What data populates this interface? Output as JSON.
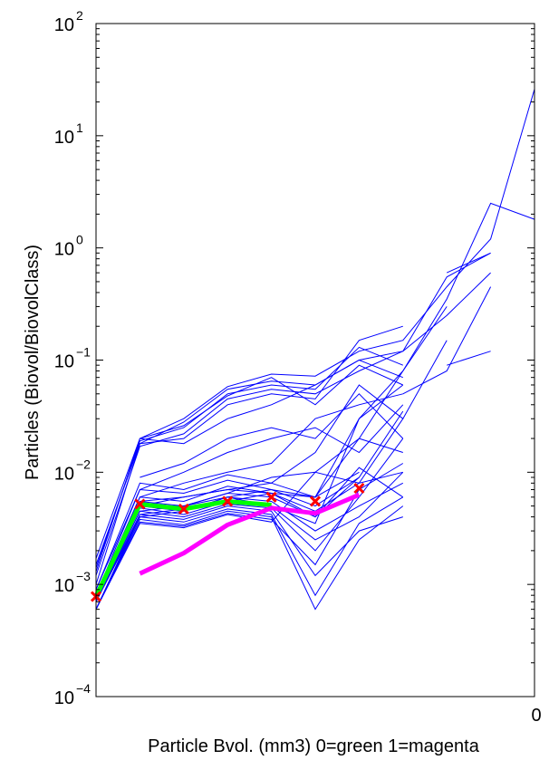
{
  "chart_data": {
    "type": "line",
    "xlabel": "Particle Bvol. (mm3) 0=green 1=magenta",
    "ylabel": "Particles (Biovol/BiovolClass)",
    "x_tick_labels": [
      "0"
    ],
    "yscale": "log",
    "ylim": [
      0.0001,
      100
    ],
    "y_ticks": [
      {
        "value": 0.0001,
        "base": "10",
        "exp": "−4"
      },
      {
        "value": 0.001,
        "base": "10",
        "exp": "−3"
      },
      {
        "value": 0.01,
        "base": "10",
        "exp": "−2"
      },
      {
        "value": 0.1,
        "base": "10",
        "exp": "−1"
      },
      {
        "value": 1,
        "base": "10",
        "exp": "0"
      },
      {
        "value": 10,
        "base": "10",
        "exp": "1"
      },
      {
        "value": 100,
        "base": "10",
        "exp": "2"
      }
    ],
    "grid": false,
    "legend": "none",
    "colors": {
      "samples": "#0000ff",
      "mean_0": "#00ff00",
      "mean_1": "#ff00ff",
      "markers": "#ff0000",
      "axes": "#000000"
    },
    "series": [
      {
        "x": [
          0,
          1,
          2,
          3,
          4,
          5,
          6,
          7,
          8,
          9,
          10
        ],
        "values": [
          0.0017,
          0.02,
          0.03,
          0.058,
          0.075,
          0.072,
          0.12,
          0.15,
          0.45,
          1.2,
          26
        ]
      },
      {
        "x": [
          0,
          1,
          2,
          3,
          4,
          5,
          6,
          7,
          8,
          9
        ],
        "values": [
          0.0015,
          0.018,
          0.028,
          0.055,
          0.065,
          0.06,
          0.1,
          0.12,
          0.55,
          0.9
        ]
      },
      {
        "x": [
          0,
          1,
          2,
          3,
          4,
          5,
          6,
          7
        ],
        "values": [
          0.0014,
          0.019,
          0.025,
          0.05,
          0.06,
          0.055,
          0.13,
          0.09
        ]
      },
      {
        "x": [
          0,
          1,
          2,
          3,
          4,
          5,
          6,
          7
        ],
        "values": [
          0.0012,
          0.017,
          0.022,
          0.045,
          0.055,
          0.05,
          0.08,
          0.12
        ]
      },
      {
        "x": [
          0,
          1,
          2,
          3,
          4,
          5,
          6,
          7
        ],
        "values": [
          0.001,
          0.018,
          0.02,
          0.04,
          0.05,
          0.045,
          0.15,
          0.2
        ]
      },
      {
        "x": [
          0,
          1,
          2,
          3,
          4,
          5,
          6,
          7
        ],
        "values": [
          0.0013,
          0.02,
          0.026,
          0.048,
          0.07,
          0.04,
          0.09,
          0.06
        ]
      },
      {
        "x": [
          1,
          2,
          3,
          4,
          5,
          6,
          7
        ],
        "values": [
          0.02,
          0.018,
          0.03,
          0.04,
          0.06,
          0.1,
          0.07
        ]
      },
      {
        "x": [
          0,
          1,
          2,
          3,
          4,
          5,
          6,
          7,
          8
        ],
        "values": [
          0.0009,
          0.008,
          0.007,
          0.0095,
          0.008,
          0.006,
          0.03,
          0.08,
          0.3
        ]
      },
      {
        "x": [
          0,
          1,
          2,
          3,
          4,
          5,
          6,
          7
        ],
        "values": [
          0.0009,
          0.007,
          0.0065,
          0.0085,
          0.007,
          0.005,
          0.009,
          0.035
        ]
      },
      {
        "x": [
          0,
          1,
          2,
          3,
          4,
          5,
          6,
          7
        ],
        "values": [
          0.0008,
          0.006,
          0.0055,
          0.0075,
          0.0065,
          0.006,
          0.02,
          0.015
        ]
      },
      {
        "x": [
          0,
          1,
          2,
          3,
          4,
          5,
          6,
          7
        ],
        "values": [
          0.0008,
          0.0055,
          0.005,
          0.0065,
          0.006,
          0.004,
          0.011,
          0.006
        ]
      },
      {
        "x": [
          0,
          1,
          2,
          3,
          4,
          5,
          6,
          7
        ],
        "values": [
          0.0007,
          0.005,
          0.0045,
          0.006,
          0.0055,
          0.003,
          0.005,
          0.008
        ]
      },
      {
        "x": [
          0,
          1,
          2,
          3,
          4,
          5,
          6,
          7
        ],
        "values": [
          0.0007,
          0.0048,
          0.0042,
          0.0055,
          0.005,
          0.0025,
          0.004,
          0.01
        ]
      },
      {
        "x": [
          0,
          1,
          2,
          3,
          4,
          5,
          6,
          7
        ],
        "values": [
          0.0007,
          0.0045,
          0.004,
          0.0052,
          0.0048,
          0.002,
          0.006,
          0.02
        ]
      },
      {
        "x": [
          0,
          1,
          2,
          3,
          4,
          5,
          6,
          7
        ],
        "values": [
          0.0007,
          0.0042,
          0.0038,
          0.005,
          0.0045,
          0.0012,
          0.003,
          0.004
        ]
      },
      {
        "x": [
          0,
          1,
          2,
          3,
          4,
          5,
          6,
          7
        ],
        "values": [
          0.0006,
          0.004,
          0.0036,
          0.0047,
          0.0042,
          0.0008,
          0.0035,
          0.006
        ]
      },
      {
        "x": [
          0,
          1,
          2,
          3,
          4,
          5,
          6,
          7
        ],
        "values": [
          0.0006,
          0.0038,
          0.0034,
          0.0045,
          0.004,
          0.0006,
          0.0025,
          0.005
        ]
      },
      {
        "x": [
          0,
          1,
          2,
          3,
          4,
          5,
          6,
          7
        ],
        "values": [
          0.0006,
          0.0036,
          0.0033,
          0.0043,
          0.0038,
          0.0015,
          0.007,
          0.012
        ]
      },
      {
        "x": [
          0,
          1,
          2,
          3,
          4,
          5,
          6,
          7
        ],
        "values": [
          0.0006,
          0.0035,
          0.0032,
          0.0042,
          0.0036,
          0.01,
          0.008,
          0.01
        ]
      },
      {
        "x": [
          0,
          1,
          2,
          3,
          4,
          5,
          6,
          7,
          8
        ],
        "values": [
          0.0007,
          0.005,
          0.006,
          0.007,
          0.008,
          0.015,
          0.06,
          0.03,
          0.15
        ]
      },
      {
        "x": [
          0,
          1,
          2,
          3,
          4,
          5,
          6,
          7
        ],
        "values": [
          0.0008,
          0.006,
          0.008,
          0.01,
          0.012,
          0.03,
          0.04,
          0.05
        ]
      },
      {
        "x": [
          0,
          1,
          2,
          3,
          4,
          5,
          6,
          7
        ],
        "values": [
          0.0008,
          0.007,
          0.01,
          0.015,
          0.02,
          0.025,
          0.015,
          0.04
        ]
      },
      {
        "x": [
          1,
          2,
          3,
          4,
          5,
          6,
          7
        ],
        "values": [
          0.009,
          0.012,
          0.02,
          0.025,
          0.02,
          0.05,
          0.02
        ]
      },
      {
        "x": [
          0,
          1,
          2,
          3,
          4,
          5,
          6,
          7
        ],
        "values": [
          0.0007,
          0.0045,
          0.005,
          0.0065,
          0.009,
          0.01,
          0.02,
          0.08
        ]
      },
      {
        "x": [
          0,
          1,
          2,
          3,
          4,
          5,
          6
        ],
        "values": [
          0.0007,
          0.004,
          0.0045,
          0.006,
          0.007,
          0.006,
          0.01
        ]
      },
      {
        "x": [
          0,
          1,
          2,
          3,
          4,
          5,
          6
        ],
        "values": [
          0.0006,
          0.0042,
          0.0047,
          0.0055,
          0.0065,
          0.004,
          0.009
        ]
      },
      {
        "x": [
          1,
          2,
          3,
          4,
          5,
          6,
          7
        ],
        "values": [
          0.005,
          0.005,
          0.006,
          0.005,
          0.0035,
          0.03,
          0.06
        ]
      },
      {
        "x": [
          1,
          2,
          3,
          4,
          5,
          6,
          7
        ],
        "values": [
          0.0055,
          0.006,
          0.007,
          0.0065,
          0.0045,
          0.008,
          0.03
        ]
      },
      {
        "x": [
          7,
          8,
          9,
          10
        ],
        "values": [
          0.08,
          0.35,
          2.5,
          1.8
        ]
      },
      {
        "x": [
          7,
          8,
          9
        ],
        "values": [
          0.12,
          0.25,
          0.6
        ]
      },
      {
        "x": [
          7,
          8,
          9
        ],
        "values": [
          0.05,
          0.08,
          0.45
        ]
      },
      {
        "x": [
          8,
          9
        ],
        "values": [
          0.09,
          0.12
        ]
      },
      {
        "x": [
          8,
          9
        ],
        "values": [
          0.6,
          0.9
        ]
      }
    ],
    "mean_series_0": {
      "x": [
        0,
        1,
        2,
        3,
        4
      ],
      "values": [
        0.00078,
        0.0052,
        0.0047,
        0.0055,
        0.0051
      ]
    },
    "mean_series_1": {
      "x": [
        1,
        2,
        3,
        4,
        5,
        6
      ],
      "values": [
        0.00125,
        0.0019,
        0.0034,
        0.0048,
        0.0043,
        0.0063
      ]
    },
    "markers": {
      "x": [
        0,
        1,
        2,
        3,
        4,
        5,
        6
      ],
      "values": [
        0.00078,
        0.0052,
        0.0047,
        0.0055,
        0.006,
        0.0055,
        0.0072
      ]
    }
  }
}
